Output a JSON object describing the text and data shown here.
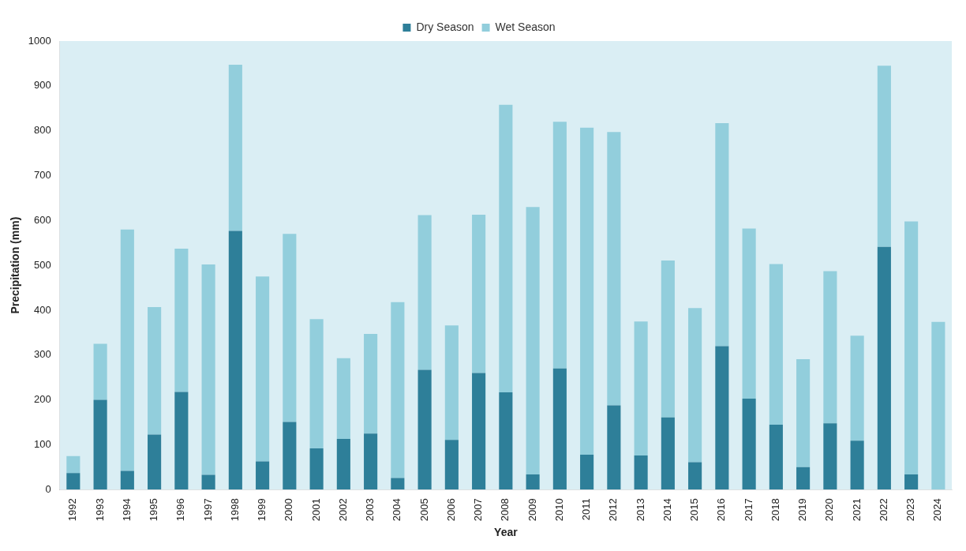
{
  "chart_data": {
    "type": "bar",
    "stacked": true,
    "xlabel": "Year",
    "ylabel": "Precipitation (mm)",
    "categories": [
      "1992",
      "1993",
      "1994",
      "1995",
      "1996",
      "1997",
      "1998",
      "1999",
      "2000",
      "2001",
      "2002",
      "2003",
      "2004",
      "2005",
      "2006",
      "2007",
      "2008",
      "2009",
      "2010",
      "2011",
      "2012",
      "2013",
      "2014",
      "2015",
      "2016",
      "2017",
      "2018",
      "2019",
      "2020",
      "2021",
      "2022",
      "2023",
      "2024"
    ],
    "series": [
      {
        "name": "Dry Season",
        "color": "#2e7f99",
        "values": [
          37,
          200,
          42,
          123,
          218,
          33,
          577,
          63,
          151,
          92,
          113,
          125,
          26,
          267,
          111,
          260,
          217,
          34,
          270,
          78,
          188,
          76,
          161,
          61,
          320,
          203,
          145,
          50,
          148,
          109,
          541,
          34,
          0
        ]
      },
      {
        "name": "Wet Season",
        "color": "#92cedc",
        "values": [
          38,
          125,
          538,
          284,
          319,
          469,
          370,
          412,
          419,
          288,
          180,
          222,
          392,
          345,
          255,
          353,
          641,
          596,
          550,
          729,
          609,
          299,
          350,
          344,
          497,
          379,
          358,
          241,
          339,
          234,
          404,
          564,
          374
        ]
      }
    ],
    "ylim": [
      0,
      1000
    ],
    "yticks": [
      0,
      100,
      200,
      300,
      400,
      500,
      600,
      700,
      800,
      900,
      1000
    ],
    "grid": false,
    "legend": "top"
  }
}
